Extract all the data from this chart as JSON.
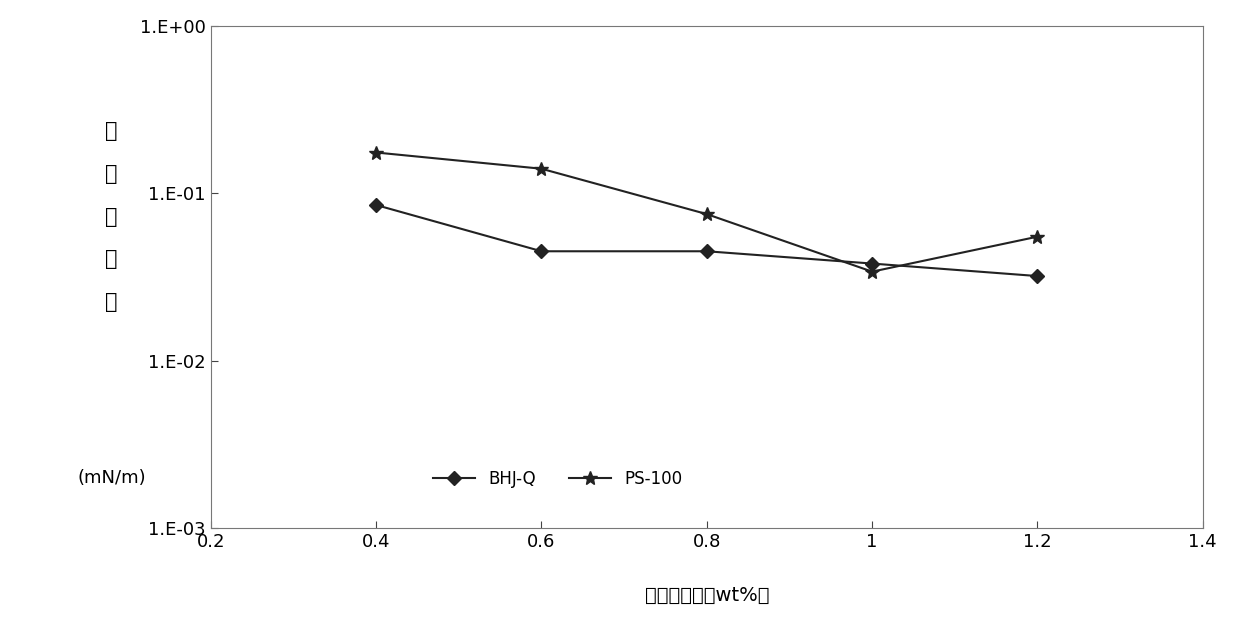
{
  "x": [
    0.4,
    0.6,
    0.8,
    1.0,
    1.2
  ],
  "bhj_q": [
    0.085,
    0.045,
    0.045,
    0.038,
    0.032
  ],
  "ps_100": [
    0.175,
    0.14,
    0.075,
    0.034,
    0.055
  ],
  "line_color": "#222222",
  "marker_bhj": "D",
  "marker_ps": "s",
  "legend_bhj": "BHJ-Q",
  "legend_ps": "PS-100",
  "ylabel_chars": [
    "界",
    "面",
    "张",
    "力",
    "值"
  ],
  "ylabel_unit": "(mN/m)",
  "xlabel": "碳酸钠浓度（wt%）",
  "xlim": [
    0.2,
    1.4
  ],
  "ylim_log": [
    -3,
    0
  ],
  "xticks": [
    0.2,
    0.4,
    0.6,
    0.8,
    1.0,
    1.2,
    1.4
  ],
  "yticks_log": [
    -3,
    -2,
    -1,
    0
  ],
  "background_color": "#ffffff",
  "label_fontsize": 14,
  "tick_fontsize": 13,
  "legend_fontsize": 12,
  "ylabel_fontsize": 15,
  "unit_fontsize": 13
}
